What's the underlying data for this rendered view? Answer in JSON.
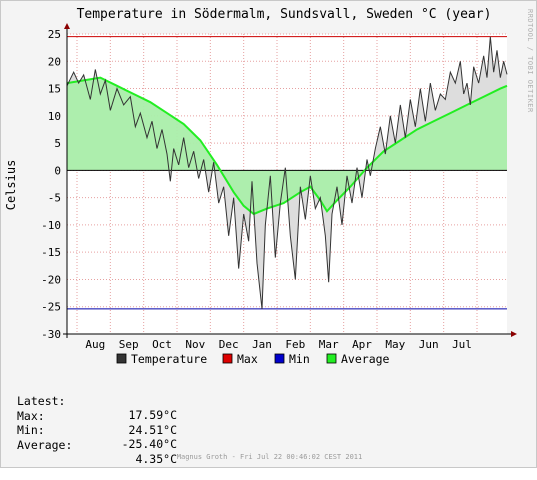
{
  "chart_data": {
    "type": "line",
    "title": "Temperature in Södermalm, Sundsvall, Sweden °C (year)",
    "ylabel": "Celsius",
    "xlabel": "",
    "ylim": [
      -30,
      25
    ],
    "yticks": [
      25,
      20,
      15,
      10,
      5,
      0,
      -5,
      -10,
      -15,
      -20,
      -25,
      -30
    ],
    "x_tick_labels": [
      "Aug",
      "Sep",
      "Oct",
      "Nov",
      "Dec",
      "Jan",
      "Feb",
      "Mar",
      "Apr",
      "May",
      "Jun",
      "Jul"
    ],
    "x_range_months": [
      0,
      12
    ],
    "max_line": 24.51,
    "min_line": -25.4,
    "grid": true,
    "legend_position": "bottom",
    "colors": {
      "temperature": "#333333",
      "max": "#cc0000",
      "min": "#0000aa",
      "average_line": "#22ee22",
      "average_fill": "#aaeeaa",
      "temperature_fill": "#dddddd"
    },
    "series": [
      {
        "name": "Temperature",
        "points": [
          [
            0.0,
            15.5
          ],
          [
            0.2,
            18.0
          ],
          [
            0.35,
            16.0
          ],
          [
            0.5,
            17.5
          ],
          [
            0.7,
            13.0
          ],
          [
            0.85,
            18.5
          ],
          [
            1.0,
            14.0
          ],
          [
            1.15,
            16.5
          ],
          [
            1.3,
            11.0
          ],
          [
            1.5,
            15.0
          ],
          [
            1.7,
            12.0
          ],
          [
            1.9,
            13.5
          ],
          [
            2.05,
            8.0
          ],
          [
            2.2,
            10.5
          ],
          [
            2.4,
            6.0
          ],
          [
            2.55,
            9.0
          ],
          [
            2.7,
            4.0
          ],
          [
            2.85,
            7.5
          ],
          [
            3.0,
            3.0
          ],
          [
            3.1,
            -2.0
          ],
          [
            3.2,
            4.0
          ],
          [
            3.35,
            1.0
          ],
          [
            3.5,
            6.0
          ],
          [
            3.65,
            0.5
          ],
          [
            3.8,
            3.5
          ],
          [
            3.95,
            -1.5
          ],
          [
            4.1,
            2.0
          ],
          [
            4.25,
            -4.0
          ],
          [
            4.4,
            1.5
          ],
          [
            4.55,
            -6.0
          ],
          [
            4.7,
            -3.0
          ],
          [
            4.85,
            -12.0
          ],
          [
            5.0,
            -5.0
          ],
          [
            5.15,
            -18.0
          ],
          [
            5.3,
            -8.0
          ],
          [
            5.45,
            -13.0
          ],
          [
            5.55,
            -2.0
          ],
          [
            5.7,
            -17.0
          ],
          [
            5.85,
            -25.4
          ],
          [
            5.95,
            -10.0
          ],
          [
            6.1,
            -1.0
          ],
          [
            6.25,
            -16.0
          ],
          [
            6.4,
            -6.0
          ],
          [
            6.55,
            0.5
          ],
          [
            6.7,
            -12.0
          ],
          [
            6.85,
            -20.0
          ],
          [
            7.0,
            -3.0
          ],
          [
            7.15,
            -9.0
          ],
          [
            7.3,
            -1.0
          ],
          [
            7.45,
            -7.0
          ],
          [
            7.6,
            -5.0
          ],
          [
            7.75,
            -12.0
          ],
          [
            7.85,
            -20.5
          ],
          [
            7.95,
            -8.0
          ],
          [
            8.1,
            -3.0
          ],
          [
            8.25,
            -10.0
          ],
          [
            8.4,
            -1.0
          ],
          [
            8.55,
            -6.0
          ],
          [
            8.7,
            0.5
          ],
          [
            8.85,
            -5.0
          ],
          [
            9.0,
            2.0
          ],
          [
            9.1,
            -1.0
          ],
          [
            9.25,
            4.0
          ],
          [
            9.4,
            8.0
          ],
          [
            9.55,
            3.0
          ],
          [
            9.7,
            10.0
          ],
          [
            9.85,
            5.0
          ],
          [
            10.0,
            12.0
          ],
          [
            10.15,
            6.0
          ],
          [
            10.3,
            13.0
          ],
          [
            10.45,
            8.0
          ],
          [
            10.6,
            15.0
          ],
          [
            10.75,
            9.0
          ],
          [
            10.9,
            16.0
          ],
          [
            11.05,
            11.0
          ],
          [
            11.2,
            14.0
          ],
          [
            11.35,
            13.0
          ],
          [
            11.5,
            18.0
          ],
          [
            11.65,
            16.0
          ],
          [
            11.8,
            20.0
          ],
          [
            11.9,
            14.0
          ],
          [
            12.0,
            16.0
          ],
          [
            12.1,
            12.0
          ],
          [
            12.2,
            19.0
          ],
          [
            12.35,
            16.0
          ],
          [
            12.5,
            21.0
          ],
          [
            12.6,
            17.0
          ],
          [
            12.7,
            24.5
          ],
          [
            12.8,
            18.0
          ],
          [
            12.9,
            22.0
          ],
          [
            13.0,
            17.0
          ],
          [
            13.1,
            20.0
          ],
          [
            13.2,
            17.6
          ]
        ]
      },
      {
        "name": "Average",
        "points": [
          [
            0.0,
            16.0
          ],
          [
            0.5,
            16.5
          ],
          [
            1.0,
            17.0
          ],
          [
            1.5,
            15.5
          ],
          [
            2.0,
            14.0
          ],
          [
            2.5,
            12.5
          ],
          [
            3.0,
            10.5
          ],
          [
            3.5,
            8.5
          ],
          [
            4.0,
            5.5
          ],
          [
            4.5,
            1.0
          ],
          [
            5.0,
            -4.0
          ],
          [
            5.3,
            -6.5
          ],
          [
            5.6,
            -8.0
          ],
          [
            6.0,
            -7.0
          ],
          [
            6.5,
            -6.0
          ],
          [
            7.0,
            -4.0
          ],
          [
            7.3,
            -3.0
          ],
          [
            7.6,
            -5.5
          ],
          [
            7.8,
            -7.5
          ],
          [
            8.1,
            -5.5
          ],
          [
            8.5,
            -3.0
          ],
          [
            9.0,
            0.5
          ],
          [
            9.5,
            3.5
          ],
          [
            10.0,
            5.5
          ],
          [
            10.5,
            7.5
          ],
          [
            11.0,
            9.0
          ],
          [
            11.5,
            10.5
          ],
          [
            12.0,
            12.0
          ],
          [
            12.5,
            13.5
          ],
          [
            13.0,
            15.0
          ],
          [
            13.2,
            15.5
          ]
        ]
      }
    ]
  },
  "legend": {
    "items": [
      {
        "label": "Temperature",
        "color": "#333333"
      },
      {
        "label": "Max",
        "color": "#dd0000"
      },
      {
        "label": "Min",
        "color": "#0000cc"
      },
      {
        "label": "Average",
        "color": "#22ee22"
      }
    ]
  },
  "stats": [
    {
      "label": "Latest:",
      "value": "17.59°C"
    },
    {
      "label": "Max:",
      "value": "24.51°C"
    },
    {
      "label": "Min:",
      "value": "-25.40°C"
    },
    {
      "label": "Average:",
      "value": "4.35°C"
    }
  ],
  "footer": "Magnus Groth - Fri Jul 22 00:46:02 CEST 2011",
  "watermark": "RRDTOOL / TOBI OETIKER"
}
